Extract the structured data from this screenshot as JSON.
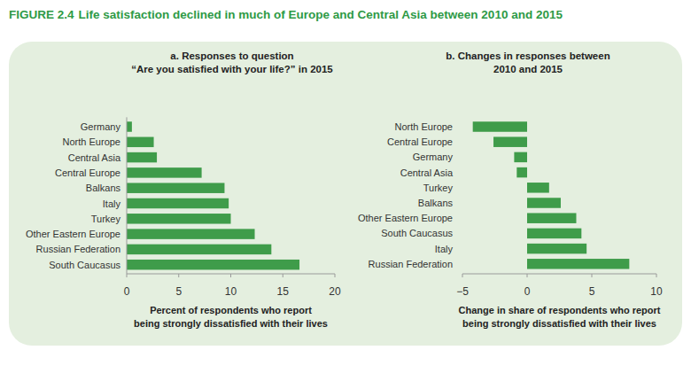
{
  "figure": {
    "number": "FIGURE 2.4",
    "title": "Life satisfaction declined in much of Europe and Central Asia between 2010 and 2015"
  },
  "chart_data": [
    {
      "type": "bar",
      "orientation": "horizontal",
      "title": [
        "a. Responses to question",
        "“Are you satisfied with your life?” in 2015"
      ],
      "categories": [
        "Germany",
        "North Europe",
        "Central Asia",
        "Central Europe",
        "Balkans",
        "Italy",
        "Turkey",
        "Other Eastern Europe",
        "Russian Federation",
        "South Caucasus"
      ],
      "values": [
        0.5,
        2.6,
        2.9,
        7.2,
        9.4,
        9.8,
        10.0,
        12.3,
        13.9,
        16.6
      ],
      "color": "#3f9c4a",
      "xlim": [
        0,
        20
      ],
      "xticks": [
        0,
        5,
        10,
        15,
        20
      ],
      "xlabel": [
        "Percent of respondents who report",
        "being strongly dissatisfied with their lives"
      ],
      "grid": false
    },
    {
      "type": "bar",
      "orientation": "horizontal",
      "title": [
        "b. Changes in responses between",
        "2010 and 2015"
      ],
      "categories": [
        "North Europe",
        "Central Europe",
        "Germany",
        "Central Asia",
        "Turkey",
        "Balkans",
        "Other Eastern Europe",
        "South Caucasus",
        "Italy",
        "Russian Federation"
      ],
      "values": [
        -4.2,
        -2.6,
        -1.0,
        -0.8,
        1.7,
        2.6,
        3.8,
        4.2,
        4.6,
        7.9
      ],
      "color": "#3f9c4a",
      "xlim": [
        -5,
        10
      ],
      "xticks": [
        {
          "value": -5,
          "label": "−5"
        },
        0,
        5,
        10
      ],
      "xlabel": [
        "Change in share of respondents who report",
        "being  strongly dissatisfied with their lives"
      ],
      "grid": false
    }
  ]
}
